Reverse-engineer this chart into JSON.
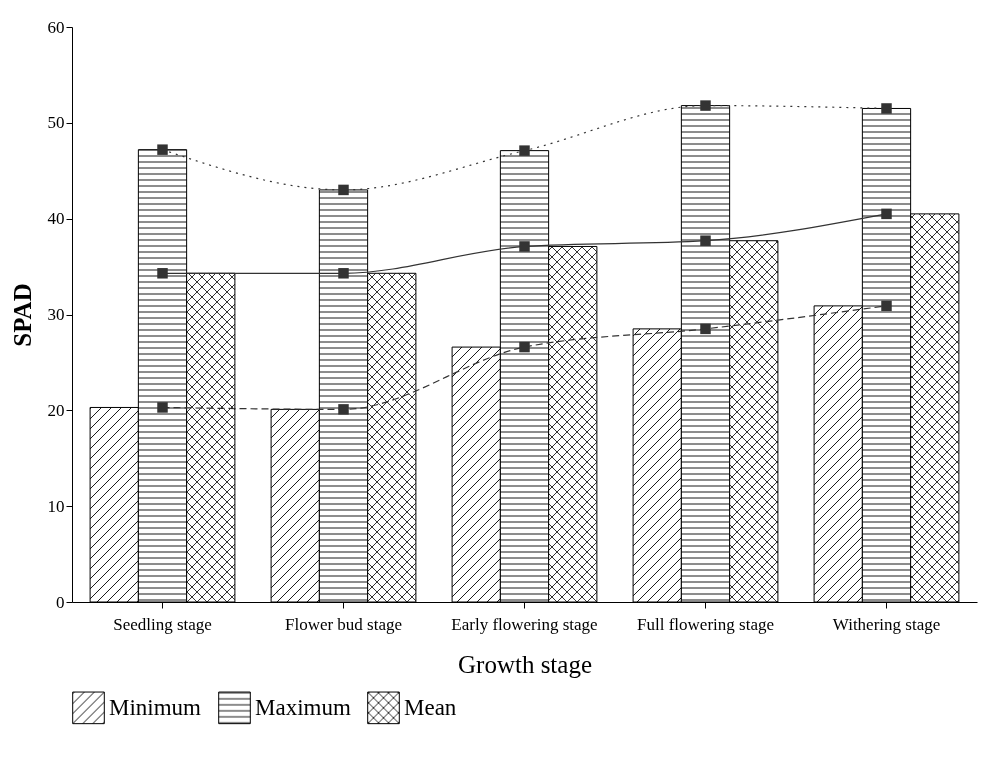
{
  "chart_data": {
    "type": "bar",
    "xlabel": "Growth stage",
    "ylabel": "SPAD",
    "categories": [
      "Seedling stage",
      "Flower bud stage",
      "Early flowering stage",
      "Full flowering stage",
      "Withering stage"
    ],
    "series": [
      {
        "name": "Minimum",
        "type": "bar",
        "color": "#000000",
        "values": [
          20.3,
          20.1,
          26.6,
          28.5,
          30.9
        ]
      },
      {
        "name": "Maximum",
        "type": "bar",
        "color": "#000000",
        "values": [
          47.2,
          43.0,
          47.1,
          51.8,
          51.5
        ]
      },
      {
        "name": "Mean",
        "type": "bar",
        "color": "#000000",
        "values": [
          34.3,
          34.3,
          37.1,
          37.7,
          40.5
        ]
      },
      {
        "type": "line",
        "color": "#333333",
        "line_style": "dashed",
        "marker": "square",
        "values": [
          20.3,
          20.1,
          26.6,
          28.5,
          30.9
        ]
      },
      {
        "type": "line",
        "color": "#333333",
        "line_style": "dotted",
        "marker": "square",
        "values": [
          47.2,
          43.0,
          47.1,
          51.8,
          51.5
        ]
      },
      {
        "type": "line",
        "color": "#333333",
        "line_style": "solid",
        "marker": "square",
        "values": [
          34.3,
          34.3,
          37.1,
          37.7,
          40.5
        ]
      }
    ],
    "ylim": [
      0,
      60
    ],
    "yticks": [
      0,
      10,
      20,
      30,
      40,
      50,
      60
    ],
    "grid": false,
    "legend": "bottom"
  }
}
